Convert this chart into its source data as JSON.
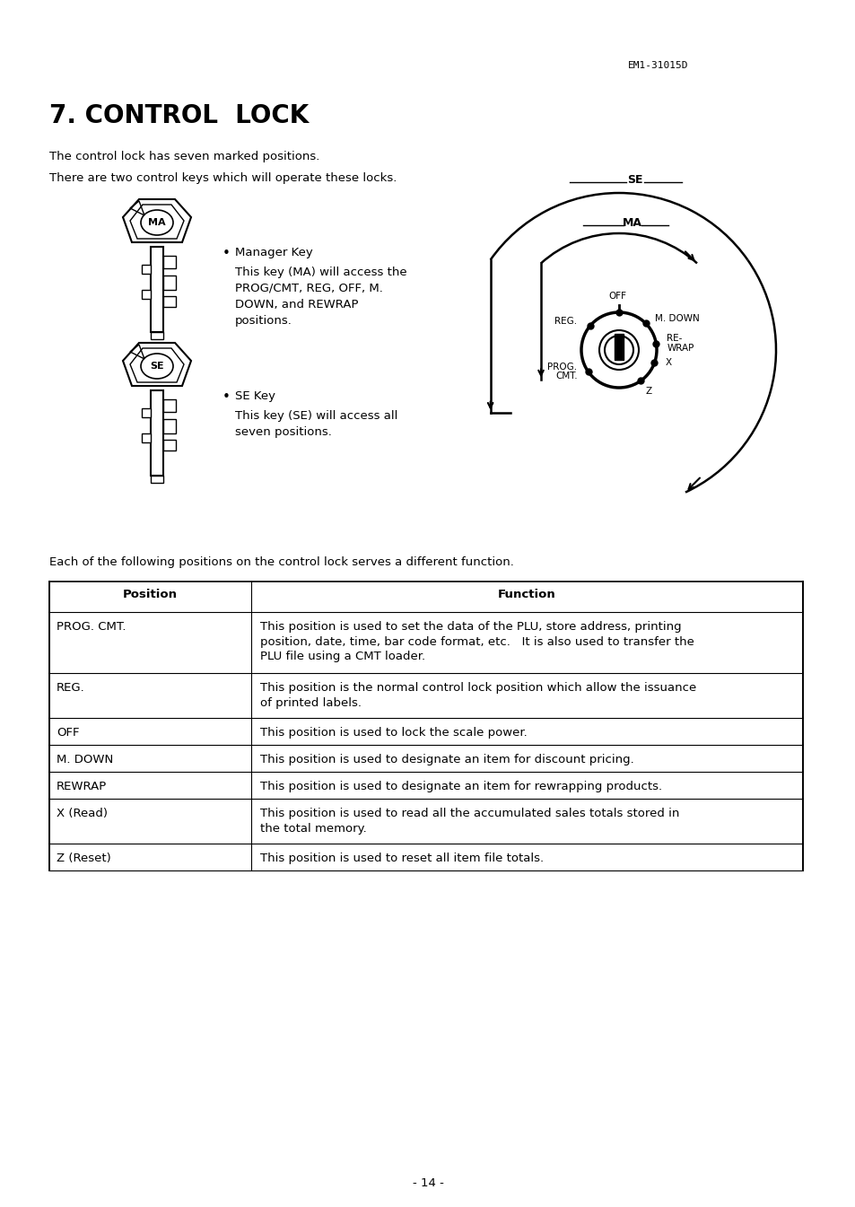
{
  "page_header": "EM1-31015D",
  "title": "7. CONTROL  LOCK",
  "para1": "The control lock has seven marked positions.",
  "para2": "There are two control keys which will operate these locks.",
  "key1_label": "MA",
  "key1_bullet": "Manager Key",
  "key1_text_line1": "This key (MA) will access the",
  "key1_text_line2": "PROG/CMT, REG, OFF, M.",
  "key1_text_line3": "DOWN, and REWRAP",
  "key1_text_line4": "positions.",
  "key2_label": "SE",
  "key2_bullet": "SE Key",
  "key2_text_line1": "This key (SE) will access all",
  "key2_text_line2": "seven positions.",
  "intro_text": "Each of the following positions on the control lock serves a different function.",
  "table_headers": [
    "Position",
    "Function"
  ],
  "table_rows": [
    [
      "PROG. CMT.",
      "This position is used to set the data of the PLU, store address, printing\nposition, date, time, bar code format, etc.   It is also used to transfer the\nPLU file using a CMT loader."
    ],
    [
      "REG.",
      "This position is the normal control lock position which allow the issuance\nof printed labels."
    ],
    [
      "OFF",
      "This position is used to lock the scale power."
    ],
    [
      "M. DOWN",
      "This position is used to designate an item for discount pricing."
    ],
    [
      "REWRAP",
      "This position is used to designate an item for rewrapping products."
    ],
    [
      "X (Read)",
      "This position is used to read all the accumulated sales totals stored in\nthe total memory."
    ],
    [
      "Z (Reset)",
      "This position is used to reset all item file totals."
    ]
  ],
  "page_number": "- 14 -",
  "bg_color": "#ffffff",
  "text_color": "#000000"
}
